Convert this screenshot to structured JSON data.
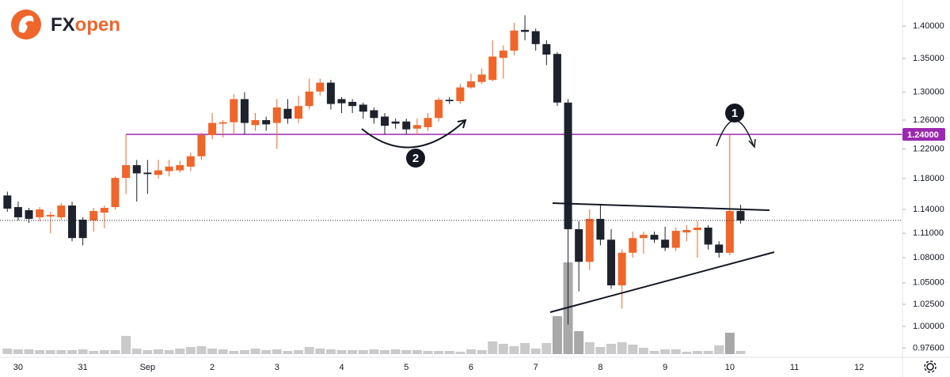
{
  "chart_data": {
    "type": "candlestick",
    "logo": {
      "left": "FX",
      "right": "open"
    },
    "categories": [
      null,
      "30",
      null,
      null,
      null,
      null,
      null,
      "31",
      null,
      null,
      null,
      null,
      null,
      "Sep",
      null,
      null,
      null,
      null,
      null,
      "2",
      null,
      null,
      null,
      null,
      null,
      "3",
      null,
      null,
      null,
      null,
      null,
      "4",
      null,
      null,
      null,
      null,
      null,
      "5",
      null,
      null,
      null,
      null,
      null,
      "6",
      null,
      null,
      null,
      null,
      null,
      "7",
      null,
      null,
      null,
      null,
      null,
      "8",
      null,
      null,
      null,
      null,
      null,
      "9",
      null,
      null,
      null,
      null,
      null,
      "10",
      null,
      null,
      null,
      null,
      null,
      "11",
      null,
      null,
      null,
      null,
      null,
      "12",
      null,
      null
    ],
    "open": [
      1.158,
      1.143,
      1.139,
      1.13,
      1.131,
      1.13,
      1.145,
      1.127,
      1.126,
      1.136,
      1.143,
      1.181,
      1.198,
      1.188,
      1.185,
      1.19,
      1.191,
      1.196,
      1.21,
      1.239,
      1.255,
      1.257,
      1.29,
      1.253,
      1.26,
      1.256,
      1.276,
      1.262,
      1.28,
      1.301,
      1.314,
      1.29,
      1.286,
      1.282,
      1.274,
      1.265,
      1.258,
      1.258,
      1.248,
      1.25,
      1.263,
      1.289,
      1.287,
      1.307,
      1.315,
      1.318,
      1.351,
      1.362,
      1.394,
      1.392,
      1.372,
      1.357,
      1.285,
      1.115,
      1.075,
      1.128,
      1.102,
      1.047,
      1.086,
      1.104,
      1.108,
      1.102,
      1.092,
      1.111,
      1.114,
      1.117,
      1.096,
      1.086,
      1.138,
      null,
      null,
      null,
      null,
      null,
      null,
      null,
      null,
      null,
      null,
      null,
      null,
      null
    ],
    "high": [
      1.163,
      1.15,
      1.142,
      1.143,
      1.137,
      1.148,
      1.15,
      1.13,
      1.142,
      1.145,
      1.183,
      1.24,
      1.205,
      1.205,
      1.205,
      1.205,
      1.204,
      1.215,
      1.242,
      1.27,
      1.26,
      1.297,
      1.3,
      1.27,
      1.265,
      1.29,
      1.29,
      1.295,
      1.32,
      1.32,
      1.318,
      1.293,
      1.29,
      1.285,
      1.278,
      1.27,
      1.262,
      1.262,
      1.262,
      1.27,
      1.292,
      1.293,
      1.312,
      1.327,
      1.335,
      1.378,
      1.37,
      1.405,
      1.417,
      1.396,
      1.378,
      1.36,
      1.29,
      1.125,
      1.14,
      1.145,
      1.115,
      1.09,
      1.112,
      1.112,
      1.112,
      1.118,
      1.117,
      1.12,
      1.125,
      1.12,
      1.1,
      1.24,
      1.146,
      null,
      null,
      null,
      null,
      null,
      null,
      null,
      null,
      null,
      null,
      null,
      null,
      null
    ],
    "low": [
      1.137,
      1.126,
      1.123,
      1.125,
      1.11,
      1.127,
      1.1,
      1.095,
      1.112,
      1.116,
      1.14,
      1.16,
      1.15,
      1.16,
      1.18,
      1.183,
      1.188,
      1.19,
      1.205,
      1.233,
      1.236,
      1.24,
      1.24,
      1.245,
      1.245,
      1.22,
      1.255,
      1.256,
      1.275,
      1.295,
      1.275,
      1.27,
      1.27,
      1.262,
      1.255,
      1.24,
      1.248,
      1.24,
      1.24,
      1.245,
      1.258,
      1.283,
      1.283,
      1.305,
      1.312,
      1.316,
      1.32,
      1.355,
      1.378,
      1.362,
      1.34,
      1.28,
      1.002,
      1.04,
      1.065,
      1.095,
      1.043,
      1.02,
      1.08,
      1.085,
      1.098,
      1.088,
      1.088,
      1.1,
      1.08,
      1.09,
      1.08,
      1.083,
      1.122,
      null,
      null,
      null,
      null,
      null,
      null,
      null,
      null,
      null,
      null,
      null,
      null,
      null
    ],
    "close": [
      1.141,
      1.13,
      1.128,
      1.14,
      1.133,
      1.145,
      1.104,
      1.104,
      1.138,
      1.142,
      1.181,
      1.198,
      1.187,
      1.186,
      1.191,
      1.196,
      1.198,
      1.21,
      1.239,
      1.256,
      1.257,
      1.29,
      1.256,
      1.26,
      1.254,
      1.278,
      1.262,
      1.28,
      1.301,
      1.314,
      1.283,
      1.284,
      1.28,
      1.272,
      1.263,
      1.252,
      1.255,
      1.247,
      1.253,
      1.263,
      1.289,
      1.287,
      1.307,
      1.316,
      1.326,
      1.353,
      1.362,
      1.393,
      1.391,
      1.372,
      1.356,
      1.285,
      1.115,
      1.075,
      1.128,
      1.102,
      1.047,
      1.086,
      1.104,
      1.108,
      1.102,
      1.092,
      1.113,
      1.114,
      1.117,
      1.096,
      1.086,
      1.138,
      1.126,
      null,
      null,
      null,
      null,
      null,
      null,
      null,
      null,
      null,
      null,
      null,
      null,
      null
    ],
    "volume": [
      7,
      6,
      6,
      5,
      5,
      5,
      5,
      6,
      4,
      5,
      5,
      23,
      7,
      5,
      6,
      5,
      7,
      9,
      10,
      7,
      6,
      4,
      5,
      7,
      5,
      6,
      4,
      5,
      9,
      7,
      6,
      5,
      5,
      5,
      6,
      5,
      6,
      5,
      5,
      4,
      4,
      4,
      3,
      6,
      5,
      16,
      13,
      10,
      14,
      7,
      14,
      48,
      116,
      29,
      15,
      9,
      13,
      15,
      12,
      8,
      4,
      6,
      6,
      3,
      4,
      4,
      11,
      27,
      4,
      null,
      null,
      null,
      null,
      null,
      null,
      null,
      null,
      null,
      null,
      null,
      null,
      null
    ],
    "up_color": "#f0652a",
    "down_color": "#1e222d",
    "volume_color": "#9e9e9e",
    "log_scale": true,
    "grid": false,
    "ylim": [
      0.966,
      1.4415
    ],
    "yticks": [
      {
        "value": 0.976,
        "label": "0.97600"
      },
      {
        "value": 1.0,
        "label": "1.00000"
      },
      {
        "value": 1.025,
        "label": "1.02500"
      },
      {
        "value": 1.05,
        "label": "1.05000"
      },
      {
        "value": 1.08,
        "label": "1.08000"
      },
      {
        "value": 1.11,
        "label": "1.11000"
      },
      {
        "value": 1.14,
        "label": "1.14000"
      },
      {
        "value": 1.18,
        "label": "1.18000"
      },
      {
        "value": 1.22,
        "label": "1.22000"
      },
      {
        "value": 1.26,
        "label": "1.26000"
      },
      {
        "value": 1.3,
        "label": "1.30000"
      },
      {
        "value": 1.35,
        "label": "1.35000"
      },
      {
        "value": 1.4,
        "label": "1.40000"
      }
    ],
    "hline": {
      "value": 1.24,
      "label": "1.24000",
      "color": "#9c27b0"
    },
    "annotations": [
      "1",
      "2"
    ]
  }
}
